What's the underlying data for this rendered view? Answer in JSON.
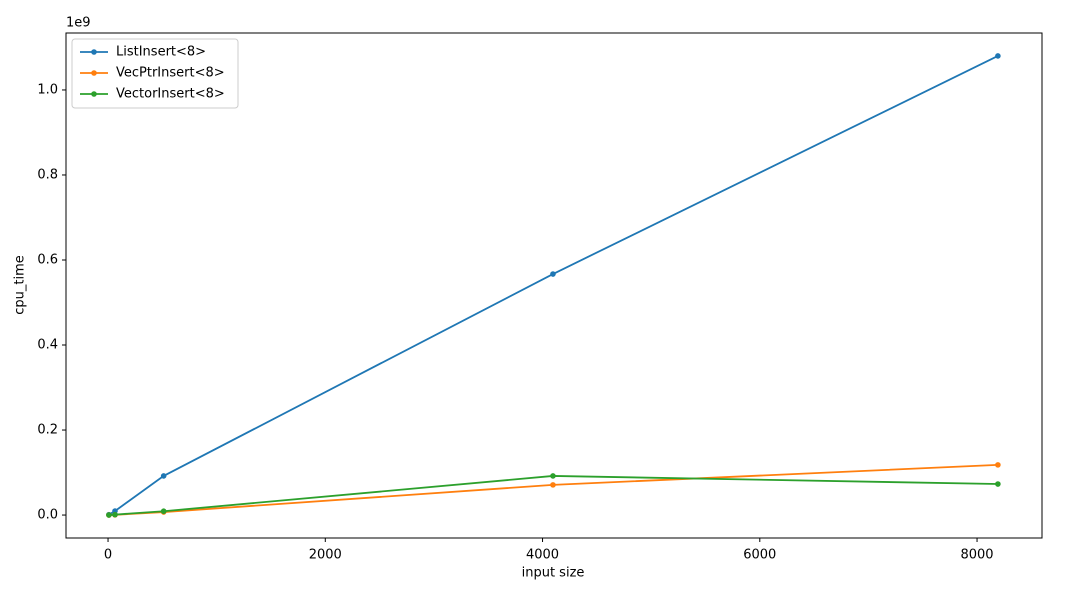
{
  "chart_data": {
    "type": "line",
    "xlabel": "input size",
    "ylabel": "cpu_time",
    "y_offset_label": "1e9",
    "x": [
      8,
      64,
      512,
      4096,
      8192
    ],
    "series": [
      {
        "name": "ListInsert<8>",
        "color": "#1f77b4",
        "values": [
          0.001,
          0.0094,
          0.092,
          0.567,
          1.08
        ]
      },
      {
        "name": "VecPtrInsert<8>",
        "color": "#ff7f0e",
        "values": [
          0.0,
          0.0005,
          0.007,
          0.071,
          0.118
        ]
      },
      {
        "name": "VectorInsert<8>",
        "color": "#2ca02c",
        "values": [
          0.0,
          0.001,
          0.009,
          0.092,
          0.073
        ]
      }
    ],
    "xlim": [
      -387,
      8598
    ],
    "xticks": [
      0,
      2000,
      4000,
      6000,
      8000
    ],
    "ylim": [
      -0.054,
      1.134
    ],
    "yticks": [
      {
        "value": 0,
        "label": "0.0"
      },
      0.2,
      0.4,
      0.6,
      0.8,
      {
        "value": 1,
        "label": "1.0"
      }
    ],
    "legend": "upper left",
    "grid": false
  }
}
